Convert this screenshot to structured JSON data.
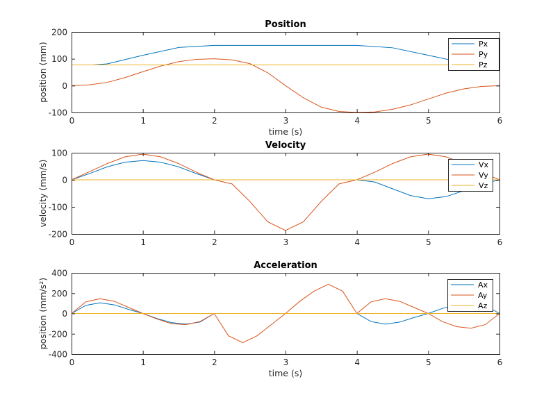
{
  "figure": {
    "background": "#ffffff",
    "axis_color": "#262626"
  },
  "chart_data": [
    {
      "type": "line",
      "title": "Position",
      "xlabel": "time (s)",
      "ylabel": "position (mm)",
      "xlim": [
        0,
        6
      ],
      "ylim": [
        -100,
        200
      ],
      "xticks": [
        0,
        1,
        2,
        3,
        4,
        5,
        6
      ],
      "yticks": [
        -100,
        0,
        100,
        200
      ],
      "grid": false,
      "legend": {
        "placement": "top-right"
      },
      "series": [
        {
          "name": "Px",
          "color": "#0072BD",
          "x": [
            0.3,
            0.5,
            1.0,
            1.5,
            2.0,
            2.5,
            3.0,
            3.5,
            4.0,
            4.5,
            5.0,
            5.5,
            6.0
          ],
          "y": [
            77,
            81,
            113,
            142,
            150,
            150,
            150,
            150,
            150,
            141,
            113,
            85,
            77
          ]
        },
        {
          "name": "Py",
          "color": "#D95319",
          "x": [
            0,
            0.25,
            0.5,
            0.75,
            1.0,
            1.25,
            1.5,
            1.75,
            2.0,
            2.25,
            2.5,
            2.75,
            3.0,
            3.25,
            3.5,
            3.75,
            4.0,
            4.25,
            4.5,
            4.75,
            5.0,
            5.25,
            5.5,
            5.75,
            6.0
          ],
          "y": [
            0,
            3,
            12,
            30,
            52,
            73,
            89,
            98,
            100,
            96,
            82,
            48,
            0,
            -45,
            -80,
            -96,
            -100,
            -98,
            -88,
            -72,
            -50,
            -28,
            -12,
            -3,
            0
          ]
        },
        {
          "name": "Pz",
          "color": "#EDB120",
          "x": [
            0,
            6
          ],
          "y": [
            77,
            77
          ]
        }
      ]
    },
    {
      "type": "line",
      "title": "Velocity",
      "xlabel": "",
      "ylabel": "velocity (mm/s)",
      "xlim": [
        0,
        6
      ],
      "ylim": [
        -200,
        100
      ],
      "xticks": [
        0,
        1,
        2,
        3,
        4,
        5,
        6
      ],
      "yticks": [
        -200,
        -100,
        0,
        100
      ],
      "grid": false,
      "legend": {
        "placement": "top-right"
      },
      "series": [
        {
          "name": "Vx",
          "color": "#0072BD",
          "x": [
            0,
            0.25,
            0.5,
            0.75,
            1.0,
            1.25,
            1.5,
            1.75,
            2.0,
            2.5,
            3.0,
            3.5,
            4.0,
            4.25,
            4.5,
            4.75,
            5.0,
            5.25,
            5.5,
            5.75,
            6.0
          ],
          "y": [
            0,
            23,
            48,
            65,
            71,
            65,
            48,
            23,
            0,
            0,
            0,
            0,
            0,
            -8,
            -33,
            -58,
            -70,
            -62,
            -40,
            -15,
            0
          ]
        },
        {
          "name": "Vy",
          "color": "#D95319",
          "x": [
            0,
            0.25,
            0.5,
            0.75,
            1.0,
            1.25,
            1.5,
            1.75,
            2.0,
            2.25,
            2.5,
            2.75,
            3.0,
            3.25,
            3.5,
            3.75,
            4.0,
            4.25,
            4.5,
            4.75,
            5.0,
            5.25,
            5.5,
            5.75,
            6.0
          ],
          "y": [
            0,
            30,
            60,
            85,
            95,
            85,
            60,
            28,
            0,
            -15,
            -80,
            -155,
            -187,
            -155,
            -80,
            -15,
            0,
            28,
            60,
            85,
            95,
            85,
            60,
            28,
            0
          ]
        },
        {
          "name": "Vz",
          "color": "#EDB120",
          "x": [
            0,
            6
          ],
          "y": [
            0,
            0
          ]
        }
      ]
    },
    {
      "type": "line",
      "title": "Acceleration",
      "xlabel": "time (s)",
      "ylabel": "position (mm/s²)",
      "xlim": [
        0,
        6
      ],
      "ylim": [
        -400,
        400
      ],
      "xticks": [
        0,
        1,
        2,
        3,
        4,
        5,
        6
      ],
      "yticks": [
        -400,
        -200,
        0,
        200,
        400
      ],
      "grid": false,
      "legend": {
        "placement": "top-right"
      },
      "series": [
        {
          "name": "Ax",
          "color": "#0072BD",
          "x": [
            0,
            0.2,
            0.4,
            0.6,
            0.8,
            1.0,
            1.2,
            1.4,
            1.6,
            1.8,
            2.0,
            2.5,
            3.0,
            3.5,
            4.0,
            4.2,
            4.4,
            4.6,
            4.8,
            5.0,
            5.2,
            5.4,
            5.6,
            5.8,
            6.0
          ],
          "y": [
            0,
            80,
            105,
            85,
            40,
            0,
            -50,
            -90,
            -105,
            -85,
            0,
            0,
            0,
            0,
            0,
            -80,
            -105,
            -85,
            -40,
            0,
            50,
            85,
            105,
            80,
            0
          ]
        },
        {
          "name": "Ay",
          "color": "#D95319",
          "x": [
            0,
            0.2,
            0.4,
            0.6,
            0.8,
            1.0,
            1.2,
            1.4,
            1.6,
            1.8,
            2.0,
            2.2,
            2.4,
            2.6,
            2.8,
            3.0,
            3.2,
            3.4,
            3.6,
            3.8,
            4.0,
            4.2,
            4.4,
            4.6,
            4.8,
            5.0,
            5.2,
            5.4,
            5.6,
            5.8,
            6.0
          ],
          "y": [
            0,
            115,
            145,
            120,
            60,
            0,
            -55,
            -100,
            -110,
            -80,
            0,
            -220,
            -288,
            -220,
            -110,
            0,
            120,
            220,
            288,
            220,
            0,
            115,
            145,
            120,
            60,
            0,
            -80,
            -130,
            -145,
            -110,
            0
          ]
        },
        {
          "name": "Az",
          "color": "#EDB120",
          "x": [
            0,
            6
          ],
          "y": [
            0,
            0
          ]
        }
      ]
    }
  ]
}
